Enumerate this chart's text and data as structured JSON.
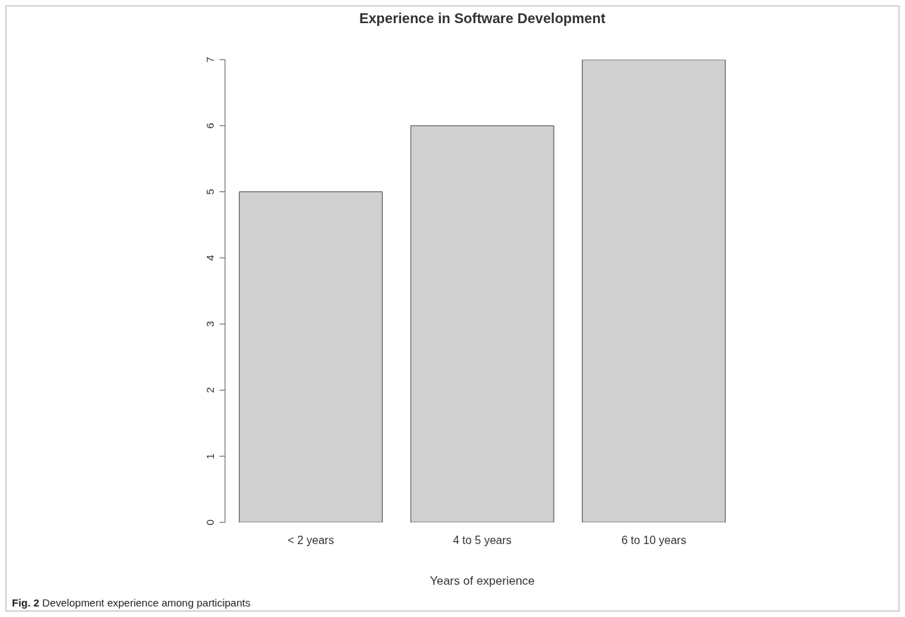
{
  "chart_data": {
    "type": "bar",
    "title": "Experience in Software Development",
    "xlabel": "Years of experience",
    "categories": [
      "< 2 years",
      "4 to 5 years",
      "6 to 10 years"
    ],
    "values": [
      5,
      6,
      7
    ],
    "color": "#d0d0d0",
    "ylim": [
      0,
      7
    ],
    "yticks": [
      0,
      1,
      2,
      3,
      4,
      5,
      6,
      7
    ],
    "annotations": [
      "Fig. 2 Development experience among participants"
    ]
  }
}
